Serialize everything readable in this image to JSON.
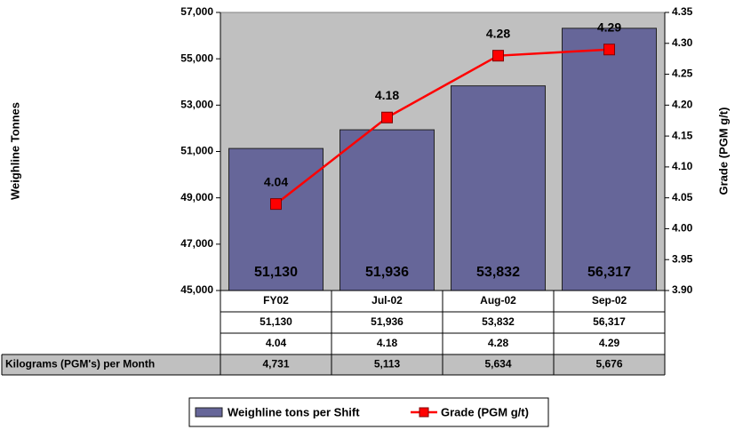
{
  "chart_data": {
    "type": "bar",
    "categories": [
      "FY02",
      "Jul-02",
      "Aug-02",
      "Sep-02"
    ],
    "series": [
      {
        "name": "Weighline tons per Shift",
        "type": "bar",
        "color": "#666699",
        "values": [
          51130,
          51936,
          53832,
          56317
        ],
        "value_labels": [
          "51,130",
          "51,936",
          "53,832",
          "56,317"
        ]
      },
      {
        "name": "Grade (PGM g/t)",
        "type": "line",
        "axis": "y2",
        "color": "#ff0000",
        "values": [
          4.04,
          4.18,
          4.28,
          4.29
        ]
      }
    ],
    "ylabel": "Weighline Tonnes",
    "y2label": "Grade (PGM g/t)",
    "ylim": [
      45000,
      57000
    ],
    "yticks": [
      {
        "value": 45000,
        "label": "45,000"
      },
      {
        "value": 47000,
        "label": "47,000"
      },
      {
        "value": 49000,
        "label": "49,000"
      },
      {
        "value": 51000,
        "label": "51,000"
      },
      {
        "value": 53000,
        "label": "53,000"
      },
      {
        "value": 55000,
        "label": "55,000"
      },
      {
        "value": 57000,
        "label": "57,000"
      }
    ],
    "y2lim": [
      3.9,
      4.35
    ],
    "y2ticks": [
      {
        "value": 3.9,
        "label": "3.90"
      },
      3.95,
      {
        "value": 4.0,
        "label": "4.00"
      },
      4.05,
      {
        "value": 4.1,
        "label": "4.10"
      },
      4.15,
      {
        "value": 4.2,
        "label": "4.20"
      },
      4.25,
      {
        "value": 4.3,
        "label": "4.30"
      },
      4.35
    ],
    "grid": false,
    "legend": "bottom",
    "table_row": {
      "label": "Kilograms (PGM's) per Month",
      "values": [
        "4,731",
        "5,113",
        "5,634",
        "5,676"
      ]
    }
  }
}
